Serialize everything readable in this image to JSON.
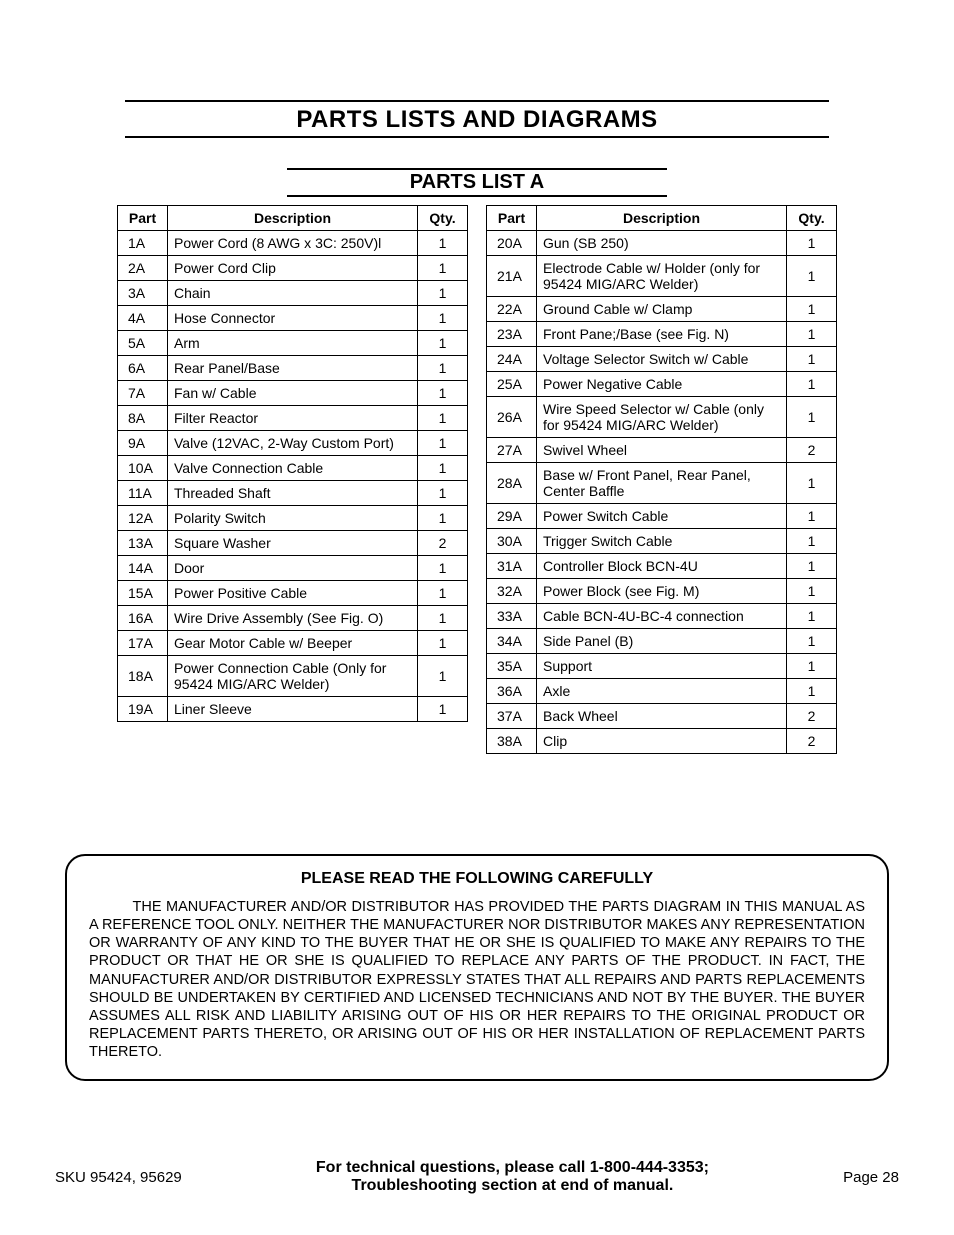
{
  "main_title": "PARTS LISTS AND DIAGRAMS",
  "sub_title": "PARTS LIST A",
  "headers": {
    "part": "Part",
    "desc": "Description",
    "qty": "Qty."
  },
  "left_rows": [
    {
      "part": "1A",
      "desc": "Power Cord (8 AWG x 3C: 250V)l",
      "qty": "1"
    },
    {
      "part": "2A",
      "desc": "Power Cord Clip",
      "qty": "1"
    },
    {
      "part": "3A",
      "desc": "Chain",
      "qty": "1"
    },
    {
      "part": "4A",
      "desc": "Hose Connector",
      "qty": "1"
    },
    {
      "part": "5A",
      "desc": "Arm",
      "qty": "1"
    },
    {
      "part": "6A",
      "desc": "Rear Panel/Base",
      "qty": "1"
    },
    {
      "part": "7A",
      "desc": "Fan w/ Cable",
      "qty": "1"
    },
    {
      "part": "8A",
      "desc": "Filter Reactor",
      "qty": "1"
    },
    {
      "part": "9A",
      "desc": "Valve (12VAC, 2-Way Custom Port)",
      "qty": "1"
    },
    {
      "part": "10A",
      "desc": "Valve Connection Cable",
      "qty": "1"
    },
    {
      "part": "11A",
      "desc": "Threaded Shaft",
      "qty": "1"
    },
    {
      "part": "12A",
      "desc": "Polarity Switch",
      "qty": "1"
    },
    {
      "part": "13A",
      "desc": "Square Washer",
      "qty": "2"
    },
    {
      "part": "14A",
      "desc": "Door",
      "qty": "1"
    },
    {
      "part": "15A",
      "desc": "Power Positive Cable",
      "qty": "1"
    },
    {
      "part": "16A",
      "desc": "Wire Drive Assembly (See Fig. O)",
      "qty": "1"
    },
    {
      "part": "17A",
      "desc": "Gear Motor Cable w/ Beeper",
      "qty": "1"
    },
    {
      "part": "18A",
      "desc": "Power Connection Cable\n(Only for 95424 MIG/ARC Welder)",
      "qty": "1"
    },
    {
      "part": "19A",
      "desc": "Liner Sleeve",
      "qty": "1"
    }
  ],
  "right_rows": [
    {
      "part": "20A",
      "desc": "Gun (SB 250)",
      "qty": "1"
    },
    {
      "part": "21A",
      "desc": "Electrode Cable w/ Holder\n(only for 95424 MIG/ARC Welder)",
      "qty": "1"
    },
    {
      "part": "22A",
      "desc": "Ground Cable w/ Clamp",
      "qty": "1"
    },
    {
      "part": "23A",
      "desc": "Front Pane;/Base (see Fig. N)",
      "qty": "1"
    },
    {
      "part": "24A",
      "desc": "Voltage Selector Switch w/ Cable",
      "qty": "1"
    },
    {
      "part": "25A",
      "desc": "Power Negative Cable",
      "qty": "1"
    },
    {
      "part": "26A",
      "desc": "Wire Speed Selector w/ Cable\n(only for 95424 MIG/ARC Welder)",
      "qty": "1"
    },
    {
      "part": "27A",
      "desc": "Swivel Wheel",
      "qty": "2"
    },
    {
      "part": "28A",
      "desc": "Base w/ Front Panel, Rear Panel, Center Baffle",
      "qty": "1"
    },
    {
      "part": "29A",
      "desc": "Power Switch Cable",
      "qty": "1"
    },
    {
      "part": "30A",
      "desc": "Trigger Switch Cable",
      "qty": "1"
    },
    {
      "part": "31A",
      "desc": "Controller Block BCN-4U",
      "qty": "1"
    },
    {
      "part": "32A",
      "desc": "Power Block (see Fig. M)",
      "qty": "1"
    },
    {
      "part": "33A",
      "desc": "Cable BCN-4U-BC-4 connection",
      "qty": "1"
    },
    {
      "part": "34A",
      "desc": "Side Panel (B)",
      "qty": "1"
    },
    {
      "part": "35A",
      "desc": "Support",
      "qty": "1"
    },
    {
      "part": "36A",
      "desc": "Axle",
      "qty": "1"
    },
    {
      "part": "37A",
      "desc": "Back Wheel",
      "qty": "2"
    },
    {
      "part": "38A",
      "desc": "Clip",
      "qty": "2"
    }
  ],
  "notice": {
    "title": "PLEASE READ THE FOLLOWING CAREFULLY",
    "body": "THE MANUFACTURER AND/OR DISTRIBUTOR HAS PROVIDED THE PARTS DIAGRAM IN THIS MANUAL AS A REFERENCE TOOL ONLY.  NEITHER THE MANUFACTURER NOR DISTRIBUTOR MAKES ANY REPRESENTATION OR WARRANTY OF ANY KIND TO THE BUYER THAT HE OR SHE IS QUALIFIED TO MAKE ANY REPAIRS TO THE PRODUCT OR THAT HE OR SHE IS QUALIFIED TO REPLACE ANY PARTS OF THE PRODUCT.  IN FACT, THE MANUFACTURER AND/OR DISTRIBUTOR EXPRESSLY STATES THAT ALL REPAIRS AND PARTS REPLACEMENTS SHOULD BE UNDERTAKEN BY CERTIFIED AND LICENSED TECHNICIANS AND NOT BY THE BUYER. THE BUYER ASSUMES ALL RISK AND LIABILITY ARISING OUT OF HIS OR HER REPAIRS TO THE ORIGINAL PRODUCT OR REPLACEMENT PARTS THERETO, OR ARISING OUT OF HIS OR HER INSTALLATION OF REPLACEMENT PARTS THERETO."
  },
  "footer": {
    "sku": "SKU 95424, 95629",
    "center1": "For technical questions, please call 1-800-444-3353;",
    "center2": "Troubleshooting section at end of manual.",
    "page": "Page 28"
  }
}
